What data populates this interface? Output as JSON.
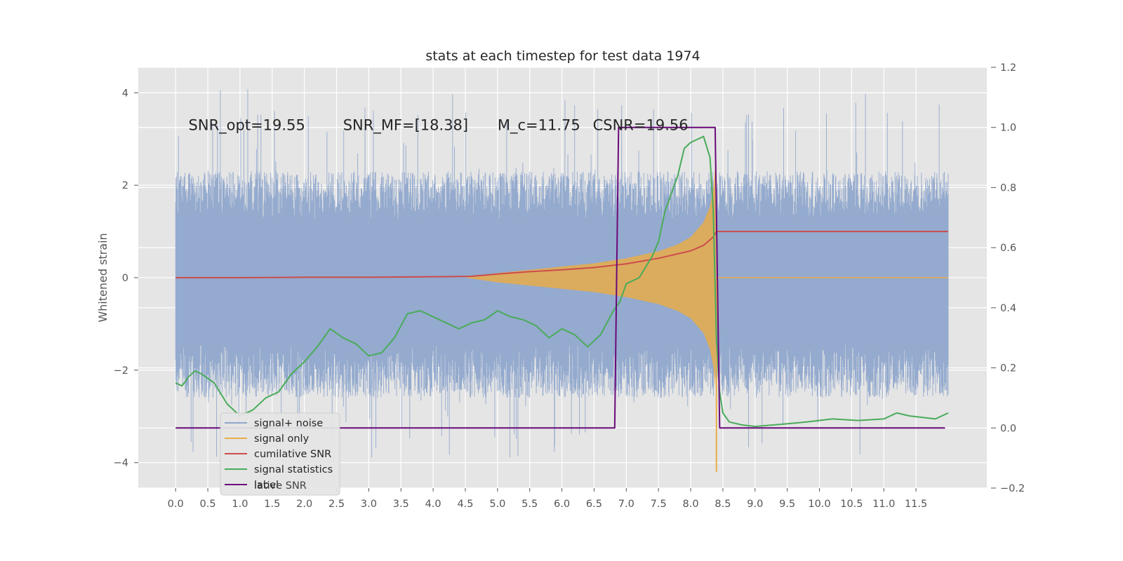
{
  "chart_data": {
    "type": "line",
    "title": "stats at each timestep for test data 1974",
    "ylabel": "Whitened strain",
    "ylabel_right": "",
    "xlabel": "",
    "xlim": [
      -0.58,
      12.6
    ],
    "ylim": [
      -4.55,
      4.55
    ],
    "ylim_right": [
      -0.2,
      1.2
    ],
    "x_ticks": [
      0.0,
      0.5,
      1.0,
      1.5,
      2.0,
      2.5,
      3.0,
      3.5,
      4.0,
      4.5,
      5.0,
      5.5,
      6.0,
      6.5,
      7.0,
      7.5,
      8.0,
      8.5,
      9.0,
      9.5,
      10.0,
      10.5,
      11.0,
      11.5
    ],
    "x_tick_labels": [
      "0.0",
      "0.5",
      "1.0",
      "1.5",
      "2.0",
      "2.5",
      "3.0",
      "3.5",
      "4.0",
      "4.5",
      "5.0",
      "5.5",
      "6.0",
      "6.5",
      "7.0",
      "7.5",
      "8.0",
      "8.5",
      "9.0",
      "9.5",
      "10.0",
      "10.5",
      "11.0",
      "11.5"
    ],
    "y_ticks": [
      -4,
      -2,
      0,
      2,
      4
    ],
    "y_tick_labels": [
      "−4",
      "−2",
      "0",
      "2",
      "4"
    ],
    "y_right_ticks": [
      -0.2,
      0.0,
      0.2,
      0.4,
      0.6,
      0.8,
      1.0,
      1.2
    ],
    "y_right_tick_labels": [
      "−0.2",
      "0.0",
      "0.2",
      "0.4",
      "0.6",
      "0.8",
      "1.0",
      "1.2"
    ],
    "grid": true,
    "legend_position": "lower-left",
    "colors": {
      "background": "#e5e5e5",
      "grid": "#ffffff",
      "noise": "#8fa6cc",
      "signal": "#e8ad4a",
      "cumulative_snr": "#cc4c4c",
      "signal_statistics": "#4aab5a",
      "label": "#6a0a7a"
    },
    "annotations": [
      {
        "text": "SNR_opt=19.55",
        "x": 0.2,
        "y": 3.3
      },
      {
        "text": "SNR_MF=[18.38]",
        "x": 2.6,
        "y": 3.3
      },
      {
        "text": "M_c=11.75",
        "x": 5.0,
        "y": 3.3
      },
      {
        "text": "CSNR=19.56",
        "x": 6.48,
        "y": 3.3
      }
    ],
    "legend": [
      {
        "name": "signal+ noise",
        "color": "#8fa6cc"
      },
      {
        "name": "signal only",
        "color": "#e8ad4a"
      },
      {
        "name": "cumilative SNR",
        "color": "#cc4c4c"
      },
      {
        "name": "signal statistics",
        "color": "#4aab5a"
      },
      {
        "name": "label",
        "color": "#6a0a7a"
      }
    ],
    "legend_ghost_text": "lative SNR",
    "series": [
      {
        "name": "signal+ noise",
        "axis": "left",
        "noise_envelope": {
          "x_start": 0.0,
          "x_end": 12.0,
          "typical_max": 2.3,
          "typical_min": -2.6,
          "peak_max": 4.1,
          "peak_min": -3.9
        }
      },
      {
        "name": "signal only",
        "axis": "left",
        "envelope": {
          "x": [
            0.0,
            4.5,
            5.0,
            5.5,
            6.0,
            6.5,
            7.0,
            7.5,
            7.8,
            8.0,
            8.2,
            8.3,
            8.35,
            8.38,
            8.4
          ],
          "amplitude": [
            0.0,
            0.0,
            0.1,
            0.17,
            0.24,
            0.31,
            0.42,
            0.57,
            0.72,
            0.88,
            1.2,
            1.55,
            1.9,
            2.4,
            0.0
          ]
        },
        "min_spike": {
          "x": 8.4,
          "y": -4.2
        }
      },
      {
        "name": "cumilative SNR",
        "axis": "left",
        "x": [
          0.0,
          1.0,
          2.0,
          3.0,
          4.0,
          4.6,
          5.0,
          5.5,
          6.0,
          6.5,
          7.0,
          7.5,
          8.0,
          8.2,
          8.35,
          8.4,
          12.0
        ],
        "y": [
          0.0,
          0.0,
          0.01,
          0.01,
          0.02,
          0.03,
          0.08,
          0.13,
          0.17,
          0.22,
          0.3,
          0.42,
          0.58,
          0.7,
          0.88,
          1.0,
          1.0
        ]
      },
      {
        "name": "signal statistics",
        "axis": "right",
        "x": [
          0.0,
          0.1,
          0.2,
          0.3,
          0.4,
          0.6,
          0.8,
          1.0,
          1.2,
          1.4,
          1.6,
          1.8,
          2.0,
          2.2,
          2.4,
          2.6,
          2.8,
          3.0,
          3.2,
          3.4,
          3.6,
          3.8,
          4.0,
          4.2,
          4.4,
          4.6,
          4.8,
          5.0,
          5.2,
          5.4,
          5.6,
          5.8,
          6.0,
          6.2,
          6.4,
          6.6,
          6.8,
          6.9,
          7.0,
          7.2,
          7.4,
          7.5,
          7.6,
          7.8,
          7.9,
          8.0,
          8.1,
          8.2,
          8.3,
          8.35,
          8.4,
          8.45,
          8.5,
          8.6,
          8.8,
          9.0,
          9.4,
          9.8,
          10.2,
          10.6,
          11.0,
          11.2,
          11.4,
          11.6,
          11.8,
          12.0
        ],
        "y": [
          0.15,
          0.14,
          0.17,
          0.19,
          0.18,
          0.15,
          0.08,
          0.04,
          0.06,
          0.1,
          0.12,
          0.18,
          0.22,
          0.27,
          0.33,
          0.3,
          0.28,
          0.24,
          0.25,
          0.3,
          0.38,
          0.39,
          0.37,
          0.35,
          0.33,
          0.35,
          0.36,
          0.39,
          0.37,
          0.36,
          0.34,
          0.3,
          0.33,
          0.31,
          0.27,
          0.31,
          0.39,
          0.42,
          0.48,
          0.5,
          0.57,
          0.62,
          0.72,
          0.84,
          0.93,
          0.95,
          0.96,
          0.97,
          0.9,
          0.73,
          0.3,
          0.12,
          0.05,
          0.02,
          0.01,
          0.005,
          0.012,
          0.02,
          0.03,
          0.025,
          0.03,
          0.05,
          0.04,
          0.035,
          0.03,
          0.05
        ]
      },
      {
        "name": "label",
        "axis": "right",
        "x": [
          0.0,
          6.82,
          6.88,
          8.38,
          8.45,
          11.95
        ],
        "y": [
          0.0,
          0.0,
          1.0,
          1.0,
          0.0,
          0.0
        ]
      }
    ]
  }
}
